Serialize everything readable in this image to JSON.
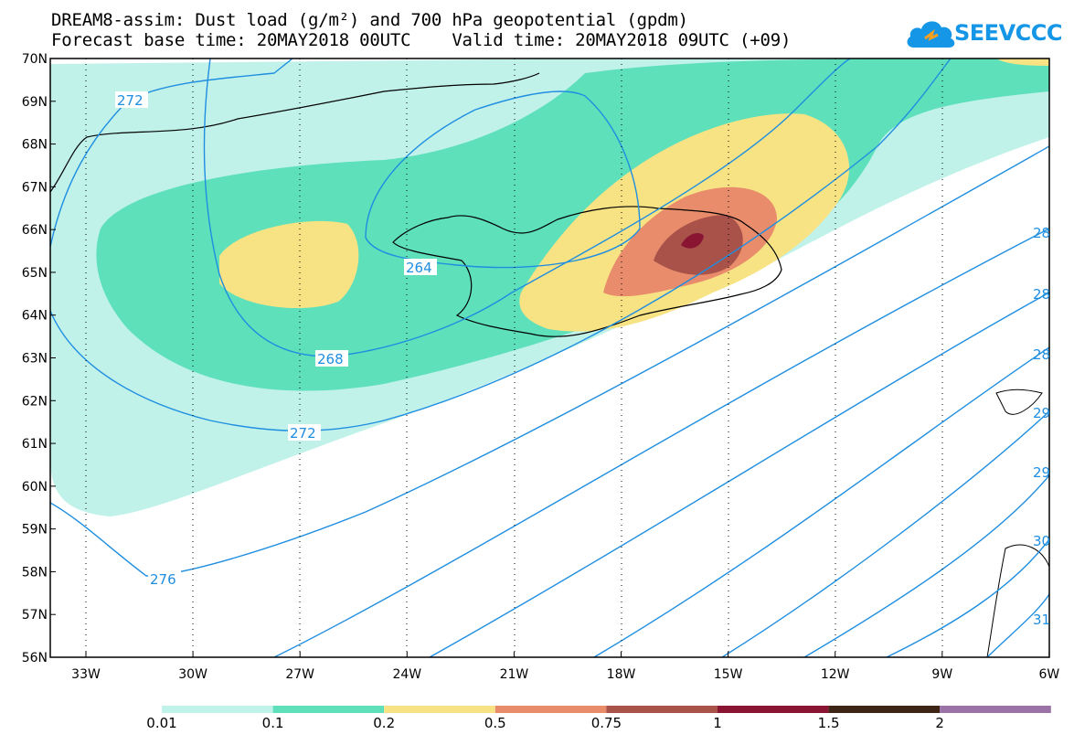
{
  "title": {
    "line1": "DREAM8-assim: Dust load (g/m²) and 700 hPa geopotential (gpdm)",
    "line2": "Forecast base time: 20MAY2018 00UTC    Valid time: 20MAY2018 09UTC (+09)"
  },
  "logo": {
    "text": "SEEVCCC",
    "color": "#1596e6"
  },
  "map": {
    "lat_labels": [
      "70N",
      "69N",
      "68N",
      "67N",
      "66N",
      "65N",
      "64N",
      "63N",
      "62N",
      "61N",
      "60N",
      "59N",
      "58N",
      "57N",
      "56N"
    ],
    "lon_labels": [
      "33W",
      "30W",
      "27W",
      "24W",
      "21W",
      "18W",
      "15W",
      "12W",
      "9W",
      "6W"
    ],
    "contour_color": "#1f8ee0",
    "contour_labels": [
      "272",
      "264",
      "268",
      "272",
      "276",
      "28",
      "28",
      "28",
      "29",
      "29",
      "30",
      "31"
    ]
  },
  "colorbar": {
    "levels": [
      "0.01",
      "0.1",
      "0.2",
      "0.5",
      "0.75",
      "1",
      "1.5",
      "2"
    ],
    "colors": [
      "#c1f2ea",
      "#5ee0bb",
      "#f7e384",
      "#e88c6b",
      "#a8524a",
      "#8a1533",
      "#3d2414",
      "#9a72a6"
    ]
  },
  "chart_data": {
    "type": "heatmap",
    "title": "DREAM8-assim: Dust load (g/m²) and 700 hPa geopotential (gpdm)",
    "xlabel": "",
    "ylabel": "",
    "x_ticks": [
      "33W",
      "30W",
      "27W",
      "24W",
      "21W",
      "18W",
      "15W",
      "12W",
      "9W",
      "6W"
    ],
    "y_ticks": [
      "70N",
      "69N",
      "68N",
      "67N",
      "66N",
      "65N",
      "64N",
      "63N",
      "62N",
      "61N",
      "60N",
      "59N",
      "58N",
      "57N",
      "56N"
    ],
    "xlim": [
      -34,
      -6
    ],
    "ylim": [
      56,
      70
    ],
    "dust_levels": [
      0.01,
      0.1,
      0.2,
      0.5,
      0.75,
      1,
      1.5,
      2
    ],
    "geopotential_contours": [
      264,
      268,
      272,
      276,
      28,
      29,
      30
    ]
  }
}
